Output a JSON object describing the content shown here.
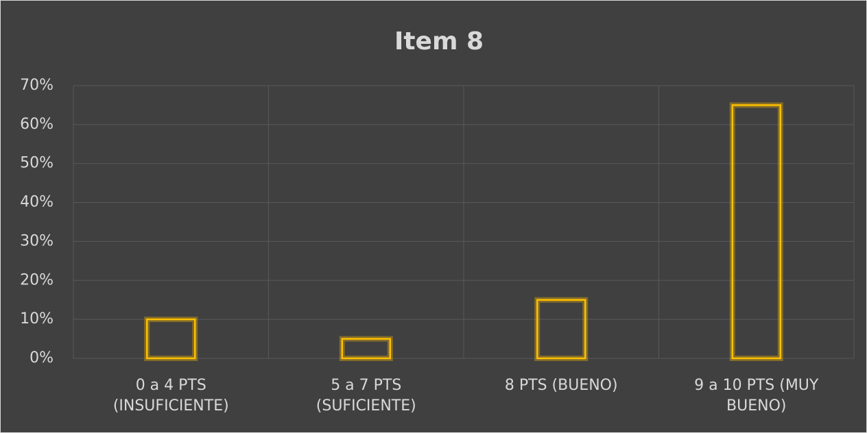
{
  "chart_data": {
    "type": "bar",
    "title": "Item 8",
    "categories": [
      "0 a 4 PTS (INSUFICIENTE)",
      "5 a 7 PTS (SUFICIENTE)",
      "8 PTS (BUENO)",
      "9 a 10 PTS (MUY BUENO)"
    ],
    "values": [
      10,
      5,
      15,
      65
    ],
    "color": "#ffc000",
    "ylim": [
      0,
      70
    ],
    "yticks": [
      {
        "value": 0,
        "label": "0%"
      },
      {
        "value": 10,
        "label": "10%"
      },
      {
        "value": 20,
        "label": "20%"
      },
      {
        "value": 30,
        "label": "30%"
      },
      {
        "value": 40,
        "label": "40%"
      },
      {
        "value": 50,
        "label": "50%"
      },
      {
        "value": 60,
        "label": "60%"
      },
      {
        "value": 70,
        "label": "70%"
      }
    ],
    "grid": true
  }
}
